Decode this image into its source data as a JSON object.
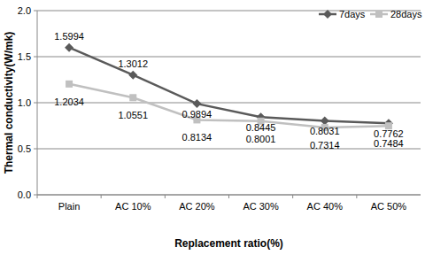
{
  "chart_data": {
    "type": "line",
    "x_label": "Replacement ratio(%)",
    "y_label": "Thermal conductivity(W/mk)",
    "categories": [
      "Plain",
      "AC 10%",
      "AC 20%",
      "AC 30%",
      "AC 40%",
      "AC 50%"
    ],
    "series": [
      {
        "name": "7days",
        "color": "#5a5a5a",
        "marker": "diamond",
        "values": [
          1.5994,
          1.3012,
          0.9894,
          0.8445,
          0.8031,
          0.7762
        ]
      },
      {
        "name": "28days",
        "color": "#c0c0c0",
        "marker": "square",
        "values": [
          1.2034,
          1.0551,
          0.8134,
          0.8001,
          0.7314,
          0.7484
        ]
      }
    ],
    "ylim": [
      0,
      2
    ],
    "yticks": [
      {
        "value": 0,
        "label": "0.0"
      },
      0.5,
      {
        "value": 1,
        "label": "1.0"
      },
      1.5,
      {
        "value": 2,
        "label": "2.0"
      }
    ],
    "grid": true,
    "legend": "top-right",
    "data_labels": true
  }
}
